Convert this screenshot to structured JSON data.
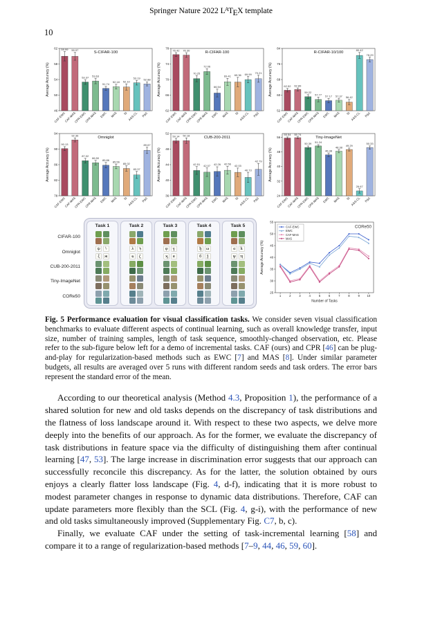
{
  "page": {
    "header_prefix": "Springer Nature 2022 ",
    "latex": {
      "l": "L",
      "a": "A",
      "t": "T",
      "e": "E",
      "x": "X"
    },
    "header_suffix": " template",
    "page_number": "10"
  },
  "figure": {
    "caption_segments": [
      {
        "t": "Fig. 5  ",
        "s": "b"
      },
      {
        "t": "Performance evaluation for visual classification tasks.",
        "s": "b"
      },
      {
        "t": " We consider seven visual classification benchmarks to evaluate different aspects of continual learning, such as overall knowledge transfer, input size, number of training samples, length of task sequence, smoothly-changed observation, etc. Please refer to the sub-figure below left for a demo of incremental tasks. CAF (ours) and CPR [",
        "s": ""
      },
      {
        "t": "46",
        "s": "link"
      },
      {
        "t": "] can be plug-and-play for regularization-based methods such as EWC [",
        "s": ""
      },
      {
        "t": "7",
        "s": "link"
      },
      {
        "t": "] and MAS [",
        "s": ""
      },
      {
        "t": "8",
        "s": "link"
      },
      {
        "t": "]. Under similar parameter budgets, all results are averaged over 5 runs with different random seeds and task orders. The error bars represent the standard error of the mean.",
        "s": ""
      }
    ],
    "task_grid": {
      "columns": [
        "Task 1",
        "Task 2",
        "Task 3",
        "Task 4",
        "Task 5"
      ],
      "row_labels": [
        "CIFAR-100",
        "Omniglot",
        "CUB-200-2011",
        "Tiny-ImageNet",
        "CORe50"
      ],
      "row_styles": [
        {
          "type": "photo",
          "colors": [
            "#6f9e4f",
            "#b07a45",
            "#4f7c8e",
            "#8aa86a",
            "#9e6f4f",
            "#5e8f5e"
          ]
        },
        {
          "type": "glyph"
        },
        {
          "type": "photo",
          "colors": [
            "#5d8f45",
            "#86ab62",
            "#4e7a57",
            "#a3bf7e",
            "#6b9370",
            "#3f6b4a"
          ]
        },
        {
          "type": "photo",
          "colors": [
            "#8a8a76",
            "#a5805e",
            "#6e7e8e",
            "#97926f",
            "#7d6e5e",
            "#b09a7a"
          ]
        },
        {
          "type": "photo",
          "colors": [
            "#5f9494",
            "#7fa9ad",
            "#8da0ad",
            "#6d8b99",
            "#9fb4b8",
            "#567f8c"
          ]
        }
      ],
      "glyphs": [
        "ψ",
        "ϟ",
        "ξ",
        "ж",
        "λ",
        "ϡ",
        "ҩ",
        "ζ",
        "φ",
        "ү",
        "ϗ",
        "я",
        "ђ",
        "ω",
        "б",
        "ѯ",
        "ϭ",
        "ҟ",
        "ѱ",
        "ҵ"
      ]
    }
  },
  "chart_data": [
    {
      "type": "bar",
      "title": "S-CIFAR-100",
      "ylabel": "Average Accuracy (%)",
      "categories": [
        "CAF-EWC",
        "CAF-MAS",
        "CPR-EWC",
        "CPR-MAS",
        "EWC",
        "MAS",
        "SI",
        "AGS-CL",
        "P&C"
      ],
      "values": [
        59.99,
        59.97,
        53.37,
        53.63,
        51.74,
        52.18,
        52.1,
        53.19,
        52.88
      ],
      "errors": [
        1.2,
        1.0,
        0.6,
        0.7,
        0.5,
        0.6,
        0.8,
        0.6,
        0.5
      ],
      "ylim": [
        46,
        62
      ],
      "yticks": [
        46,
        50,
        54,
        58,
        62
      ],
      "colors": [
        "#a84a5f",
        "#c16a7a",
        "#3f8f6e",
        "#7dbb8f",
        "#5577bb",
        "#a8d8b0",
        "#e0aa7a",
        "#66c2bd",
        "#9fb3e0"
      ]
    },
    {
      "type": "bar",
      "title": "R-CIFAR-100",
      "ylabel": "Average Accuracy (%)",
      "categories": [
        "CAF-EWC",
        "CAF-MAS",
        "CPR-EWC",
        "CPR-MAS",
        "EWC",
        "MAS",
        "SI",
        "AGS-CL",
        "P&C"
      ],
      "values": [
        76.42,
        76.3,
        70.25,
        72.06,
        66.54,
        69.41,
        69.36,
        69.99,
        70.21
      ],
      "errors": [
        0.5,
        0.6,
        0.8,
        0.7,
        1.0,
        0.9,
        1.2,
        0.8,
        0.9
      ],
      "ylim": [
        62,
        78
      ],
      "yticks": [
        62,
        66,
        70,
        74,
        78
      ],
      "colors": [
        "#a84a5f",
        "#c16a7a",
        "#3f8f6e",
        "#7dbb8f",
        "#5577bb",
        "#a8d8b0",
        "#e0aa7a",
        "#66c2bd",
        "#9fb3e0"
      ]
    },
    {
      "type": "bar",
      "title": "R-CIFAR-10/100",
      "ylabel": "Average Accuracy (%)",
      "categories": [
        "CAF-EWC",
        "CAF-MAS",
        "CPR-EWC",
        "CPR-MAS",
        "EWC",
        "MAS",
        "SI",
        "AGS-CL",
        "P&C"
      ],
      "values": [
        62.52,
        62.89,
        59.22,
        57.77,
        57.17,
        57.37,
        56.42,
        80.42,
        78.29
      ],
      "errors": [
        0.9,
        0.8,
        1.0,
        1.2,
        1.1,
        1.0,
        1.3,
        1.5,
        1.2
      ],
      "ylim": [
        52,
        84
      ],
      "yticks": [
        52,
        60,
        68,
        76,
        84
      ],
      "colors": [
        "#a84a5f",
        "#c16a7a",
        "#3f8f6e",
        "#7dbb8f",
        "#5577bb",
        "#a8d8b0",
        "#e0aa7a",
        "#66c2bd",
        "#9fb3e0"
      ]
    },
    {
      "type": "bar",
      "title": "Omniglot",
      "ylabel": "Average Accuracy (%)",
      "categories": [
        "CAF-EWC",
        "CAF-MAS",
        "CPR-EWC",
        "CPR-MAS",
        "EWC",
        "MAS",
        "SI",
        "AGS-CL",
        "P&C"
      ],
      "values": [
        90.13,
        92.36,
        87.02,
        86.5,
        85.86,
        85.56,
        85.02,
        83.37,
        89.67
      ],
      "errors": [
        0.5,
        0.5,
        0.6,
        0.6,
        0.7,
        0.6,
        0.7,
        0.9,
        0.8
      ],
      "ylim": [
        78,
        94
      ],
      "yticks": [
        78,
        82,
        86,
        90,
        94
      ],
      "colors": [
        "#a84a5f",
        "#c16a7a",
        "#3f8f6e",
        "#7dbb8f",
        "#5577bb",
        "#a8d8b0",
        "#e0aa7a",
        "#66c2bd",
        "#9fb3e0"
      ]
    },
    {
      "type": "bar",
      "title": "CUB-200-2011",
      "ylabel": "Average Accuracy (%)",
      "categories": [
        "CAF-EWC",
        "CAF-MAS",
        "CPR-EWC",
        "CPR-MAS",
        "EWC",
        "MAS",
        "SI",
        "AGS-CL",
        "P&C"
      ],
      "values": [
        50.14,
        50.18,
        42.51,
        42.07,
        42.26,
        42.56,
        42.03,
        40.73,
        42.79
      ],
      "errors": [
        0.6,
        0.7,
        1.0,
        1.1,
        1.2,
        1.0,
        1.1,
        1.3,
        1.5
      ],
      "ylim": [
        36,
        52
      ],
      "yticks": [
        36,
        40,
        44,
        48,
        52
      ],
      "colors": [
        "#a84a5f",
        "#c16a7a",
        "#3f8f6e",
        "#7dbb8f",
        "#5577bb",
        "#a8d8b0",
        "#e0aa7a",
        "#66c2bd",
        "#9fb3e0"
      ]
    },
    {
      "type": "bar",
      "title": "Tiny-ImageNet",
      "ylabel": "Average Accuracy (%)",
      "categories": [
        "CAF-EWC",
        "CAF-MAS",
        "CPR-EWC",
        "CPR-MAS",
        "EWC",
        "MAS",
        "SI",
        "AGS-CL",
        "P&C"
      ],
      "values": [
        55.54,
        55.74,
        50.39,
        51.24,
        46.38,
        48.38,
        49.29,
        26.67,
        50.33
      ],
      "errors": [
        0.6,
        0.5,
        0.8,
        0.7,
        1.0,
        0.9,
        0.8,
        1.2,
        0.9
      ],
      "ylim": [
        24,
        58
      ],
      "yticks": [
        24,
        32,
        40,
        48,
        56
      ],
      "colors": [
        "#a84a5f",
        "#c16a7a",
        "#3f8f6e",
        "#7dbb8f",
        "#5577bb",
        "#a8d8b0",
        "#e0aa7a",
        "#66c2bd",
        "#9fb3e0"
      ]
    },
    {
      "type": "line",
      "title": "CORe50",
      "xlabel": "Number of Tasks",
      "ylabel": "Average Accuracy (%)",
      "x": [
        1,
        2,
        3,
        4,
        5,
        6,
        7,
        8,
        9,
        10
      ],
      "ylim": [
        25,
        55
      ],
      "yticks": [
        25,
        30,
        35,
        40,
        45,
        50,
        55
      ],
      "legend_position": "top-left",
      "series": [
        {
          "name": "CAF-EWC",
          "color": "#3a5fcd",
          "marker": "circle",
          "values": [
            37.0,
            33.5,
            35.5,
            38.0,
            37.5,
            42.0,
            45.0,
            50.0,
            50.0,
            47.5
          ]
        },
        {
          "name": "EWC",
          "color": "#7aa6d6",
          "marker": "triangle",
          "values": [
            37.0,
            33.0,
            35.0,
            37.5,
            36.0,
            41.0,
            44.0,
            49.0,
            48.5,
            46.0
          ]
        },
        {
          "name": "CAF-MAS",
          "color": "#e287b0",
          "marker": "square",
          "values": [
            36.5,
            30.0,
            31.0,
            36.5,
            30.0,
            33.5,
            36.5,
            44.0,
            43.5,
            40.5
          ]
        },
        {
          "name": "MAS",
          "color": "#c2477e",
          "marker": "diamond",
          "values": [
            36.0,
            29.5,
            30.5,
            36.0,
            29.5,
            33.0,
            36.0,
            43.5,
            43.0,
            39.5
          ]
        }
      ]
    }
  ],
  "body": {
    "para1_segments": [
      {
        "t": "According to our theoretical analysis (Method ",
        "s": ""
      },
      {
        "t": "4.3",
        "s": "link"
      },
      {
        "t": ", Proposition ",
        "s": ""
      },
      {
        "t": "1",
        "s": "link"
      },
      {
        "t": "), the performance of a shared solution for new and old tasks depends on the discrepancy of task distributions and the flatness of loss landscape around it. With respect to these two aspects, we delve more deeply into the benefits of our approach. As for the former, we evaluate the discrepancy of task distributions in feature space via the difficulty of distinguishing them after continual learning [",
        "s": ""
      },
      {
        "t": "47",
        "s": "link"
      },
      {
        "t": ", ",
        "s": ""
      },
      {
        "t": "53",
        "s": "link"
      },
      {
        "t": "]. The large increase in discrimination error suggests that our approach can successfully reconcile this discrepancy. As for the latter, the solution obtained by ours enjoys a clearly flatter loss landscape (Fig. ",
        "s": ""
      },
      {
        "t": "4",
        "s": "link"
      },
      {
        "t": ", d-f), indicating that it is more robust to modest parameter changes in response to dynamic data distributions. Therefore, CAF can update parameters more flexibly than the SCL (Fig. ",
        "s": ""
      },
      {
        "t": "4",
        "s": "link"
      },
      {
        "t": ", g-i), with the performance of new and old tasks simultaneously improved (Supplementary Fig. ",
        "s": ""
      },
      {
        "t": "C7",
        "s": "link"
      },
      {
        "t": ", b, c).",
        "s": ""
      }
    ],
    "para2_segments": [
      {
        "t": "Finally, we evaluate CAF under the setting of task-incremental learning [",
        "s": ""
      },
      {
        "t": "58",
        "s": "link"
      },
      {
        "t": "] and compare it to a range of regularization-based methods [",
        "s": ""
      },
      {
        "t": "7",
        "s": "link"
      },
      {
        "t": "–",
        "s": ""
      },
      {
        "t": "9",
        "s": "link"
      },
      {
        "t": ", ",
        "s": ""
      },
      {
        "t": "44",
        "s": "link"
      },
      {
        "t": ", ",
        "s": ""
      },
      {
        "t": "46",
        "s": "link"
      },
      {
        "t": ", ",
        "s": ""
      },
      {
        "t": "59",
        "s": "link"
      },
      {
        "t": ", ",
        "s": ""
      },
      {
        "t": "60",
        "s": "link"
      },
      {
        "t": "].",
        "s": ""
      }
    ]
  }
}
